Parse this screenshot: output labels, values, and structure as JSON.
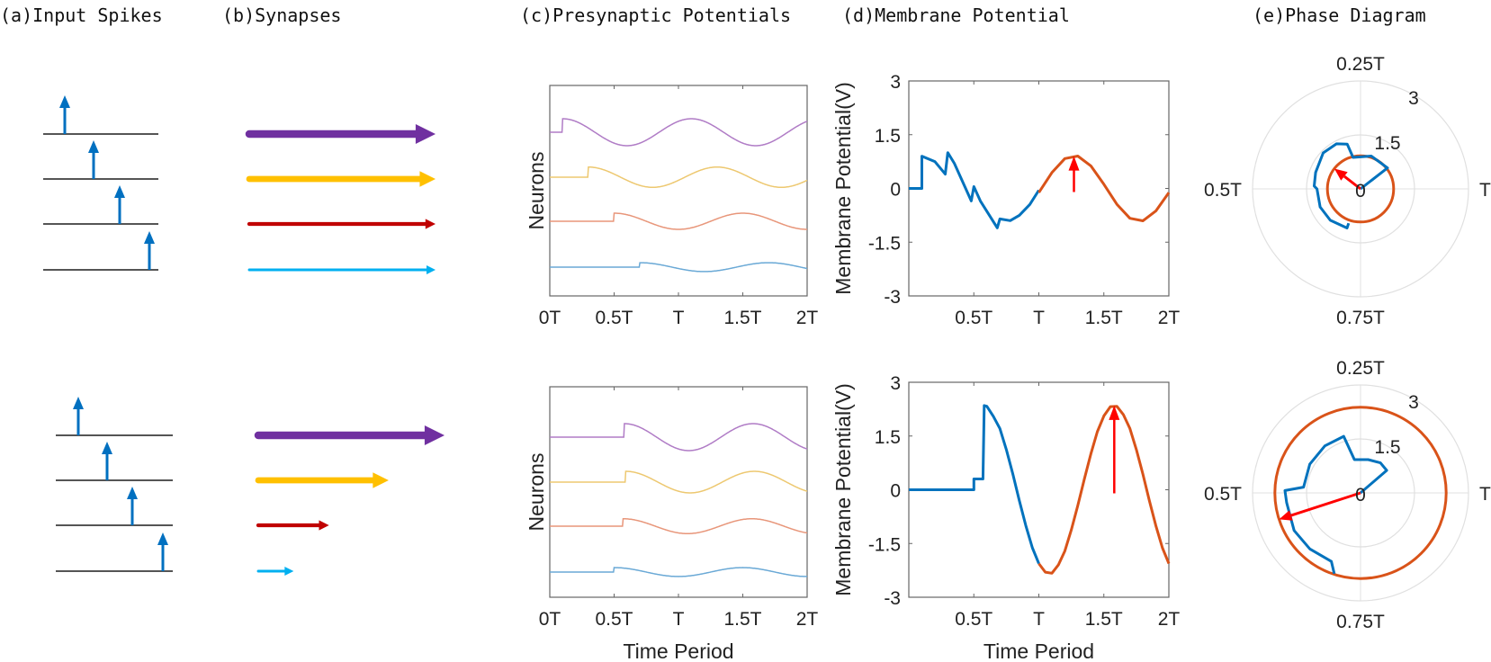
{
  "titles": {
    "a": "(a)Input Spikes",
    "b": "(b)Synapses",
    "c": "(c)Presynaptic Potentials",
    "d": "(d)Membrane Potential",
    "e": "(e)Phase Diagram"
  },
  "colors": {
    "spike": "#0070C0",
    "spike_line": "#555555",
    "synapse": [
      "#7030A0",
      "#FFC000",
      "#C00000",
      "#00B0F0"
    ],
    "neuron_trace": [
      "#B07CC6",
      "#EDC870",
      "#E8967A",
      "#6AA9D6"
    ],
    "blue": "#0072BD",
    "orange": "#D95319",
    "arrow": "#FF0000",
    "axis": "#666666",
    "grid": "#E0E0E0"
  },
  "rows": [
    {
      "synapse_weights": [
        1.0,
        1.0,
        1.0,
        1.0
      ],
      "synapse_thickness": [
        1.0,
        0.75,
        0.4,
        0.2
      ],
      "presynaptic": {
        "ylabel": "Neurons",
        "xlabel": "",
        "xticks": [
          "0T",
          "0.5T",
          "T",
          "1.5T",
          "2T"
        ],
        "onsets": [
          0.1,
          0.3,
          0.5,
          0.7
        ],
        "amplitudes": [
          1.0,
          0.75,
          0.6,
          0.33
        ]
      },
      "membrane": {
        "type": "line",
        "ylabel": "Membrane Potential(V)",
        "xlabel": "",
        "xlim": [
          0,
          2
        ],
        "ylim": [
          -3,
          3
        ],
        "yticks": [
          "3",
          "1.5",
          "0",
          "-1.5",
          "-3"
        ],
        "xticks": [
          "0.5T",
          "T",
          "1.5T",
          "2T"
        ],
        "blue": [
          [
            0,
            0
          ],
          [
            0.1,
            0
          ],
          [
            0.1,
            0.9
          ],
          [
            0.2,
            0.75
          ],
          [
            0.28,
            0.4
          ],
          [
            0.3,
            1.0
          ],
          [
            0.35,
            0.7
          ],
          [
            0.48,
            -0.35
          ],
          [
            0.5,
            0.05
          ],
          [
            0.55,
            -0.35
          ],
          [
            0.68,
            -1.1
          ],
          [
            0.7,
            -0.85
          ],
          [
            0.78,
            -0.9
          ],
          [
            0.85,
            -0.75
          ],
          [
            0.93,
            -0.45
          ],
          [
            1.0,
            -0.05
          ]
        ],
        "orange": [
          [
            1.0,
            -0.115
          ],
          [
            1.1,
            0.443
          ],
          [
            1.2,
            0.833
          ],
          [
            1.3,
            0.904
          ],
          [
            1.4,
            0.629
          ],
          [
            1.5,
            0.115
          ],
          [
            1.6,
            -0.443
          ],
          [
            1.7,
            -0.833
          ],
          [
            1.8,
            -0.904
          ],
          [
            1.9,
            -0.629
          ],
          [
            2.0,
            -0.115
          ]
        ],
        "peak_arrow": {
          "t": 1.27,
          "v": 0.9
        }
      },
      "phase": {
        "type": "polar",
        "rlim": [
          0,
          3
        ],
        "rticks": [
          "0",
          "1.5",
          "3"
        ],
        "angle_labels": [
          "T",
          "0.25T",
          "0.5T",
          "0.75T"
        ],
        "blue": [
          [
            0,
            0
          ],
          [
            0.105,
            0.95
          ],
          [
            0.2,
            0.96
          ],
          [
            0.287,
            0.9
          ],
          [
            0.296,
            1.3
          ],
          [
            0.328,
            1.42
          ],
          [
            0.378,
            1.44
          ],
          [
            0.444,
            1.33
          ],
          [
            0.49,
            1.29
          ],
          [
            0.5,
            1.21
          ],
          [
            0.567,
            1.23
          ],
          [
            0.628,
            1.21
          ],
          [
            0.697,
            1.15
          ],
          [
            0.697,
            1.01
          ]
        ],
        "orange_radius": 0.92,
        "arrow": {
          "phase": 0.395,
          "r": 0.92
        }
      }
    },
    {
      "synapse_weights": [
        1.0,
        0.7,
        0.38,
        0.19
      ],
      "synapse_thickness": [
        1.0,
        0.75,
        0.4,
        0.2
      ],
      "presynaptic": {
        "ylabel": "Neurons",
        "xlabel": "Time Period",
        "xticks": [
          "0T",
          "0.5T",
          "T",
          "1.5T",
          "2T"
        ],
        "onsets": [
          0.58,
          0.59,
          0.57,
          0.5
        ],
        "amplitudes": [
          1.0,
          0.8,
          0.55,
          0.33
        ]
      },
      "membrane": {
        "type": "line",
        "ylabel": "Membrane Potential(V)",
        "xlabel": "Time Period",
        "xlim": [
          0,
          2
        ],
        "ylim": [
          -3,
          3
        ],
        "yticks": [
          "3",
          "1.5",
          "0",
          "-1.5",
          "-3"
        ],
        "xticks": [
          "0.5T",
          "T",
          "1.5T",
          "2T"
        ],
        "blue": [
          [
            0,
            0
          ],
          [
            0.5,
            0
          ],
          [
            0.5,
            0.3
          ],
          [
            0.57,
            0.3
          ],
          [
            0.58,
            2.35
          ],
          [
            0.6,
            2.33
          ],
          [
            0.65,
            2.05
          ],
          [
            0.7,
            1.71
          ],
          [
            0.75,
            1.12
          ],
          [
            0.8,
            0.44
          ],
          [
            0.85,
            -0.3
          ],
          [
            0.9,
            -1.0
          ],
          [
            0.95,
            -1.62
          ],
          [
            1.0,
            -2.06
          ]
        ],
        "orange": [
          [
            1.0,
            -2.06
          ],
          [
            1.05,
            -2.3
          ],
          [
            1.1,
            -2.33
          ],
          [
            1.15,
            -2.1
          ],
          [
            1.2,
            -1.71
          ],
          [
            1.25,
            -1.12
          ],
          [
            1.3,
            -0.44
          ],
          [
            1.35,
            0.3
          ],
          [
            1.4,
            1.0
          ],
          [
            1.45,
            1.62
          ],
          [
            1.5,
            2.06
          ],
          [
            1.55,
            2.32
          ],
          [
            1.6,
            2.33
          ],
          [
            1.65,
            2.1
          ],
          [
            1.7,
            1.71
          ],
          [
            1.75,
            1.12
          ],
          [
            1.8,
            0.44
          ],
          [
            1.85,
            -0.3
          ],
          [
            1.9,
            -1.0
          ],
          [
            1.95,
            -1.62
          ],
          [
            2.0,
            -2.06
          ]
        ],
        "peak_arrow": {
          "t": 1.58,
          "v": 2.35
        }
      },
      "phase": {
        "type": "polar",
        "rlim": [
          0,
          3
        ],
        "rticks": [
          "0",
          "1.5",
          "3"
        ],
        "angle_labels": [
          "T",
          "0.25T",
          "0.5T",
          "0.75T"
        ],
        "blue": [
          [
            0,
            0
          ],
          [
            0.113,
            0.96
          ],
          [
            0.157,
            1.0
          ],
          [
            0.214,
            0.95
          ],
          [
            0.279,
            0.94
          ],
          [
            0.296,
            1.64
          ],
          [
            0.353,
            1.64
          ],
          [
            0.418,
            1.62
          ],
          [
            0.484,
            1.59
          ],
          [
            0.495,
            2.1
          ],
          [
            0.521,
            2.07
          ],
          [
            0.582,
            2.12
          ],
          [
            0.633,
            2.1
          ],
          [
            0.686,
            2.07
          ],
          [
            0.7,
            2.36
          ]
        ],
        "orange_radius": 2.38,
        "arrow": {
          "phase": 0.55,
          "r": 2.38
        }
      }
    }
  ]
}
